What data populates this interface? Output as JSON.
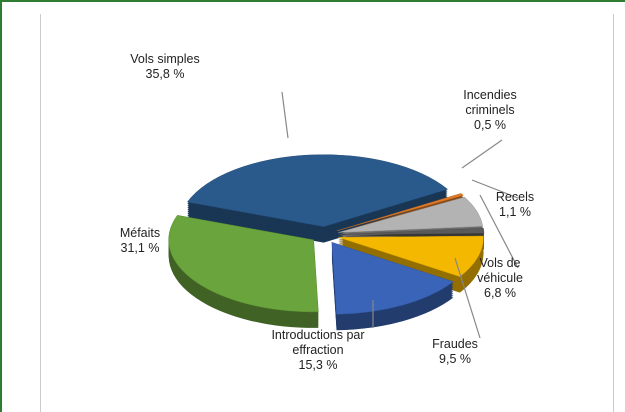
{
  "chart_data": {
    "type": "pie",
    "categories": [
      "Vols simples",
      "Incendies criminels",
      "Vols de véhicule",
      "Recels",
      "Fraudes",
      "Introductions par effraction",
      "Méfaits"
    ],
    "values": [
      35.8,
      0.5,
      6.8,
      1.1,
      9.5,
      15.3,
      31.1
    ],
    "value_labels": [
      "35,8 %",
      "0,5 %",
      "6,8 %",
      "1,1 %",
      "9,5 %",
      "15,3 %",
      "31,1 %"
    ],
    "colors": [
      "#2a5a8c",
      "#e07a26",
      "#b3b3b3",
      "#5a5a5a",
      "#f5b800",
      "#3a64b8",
      "#6aa43c"
    ]
  }
}
